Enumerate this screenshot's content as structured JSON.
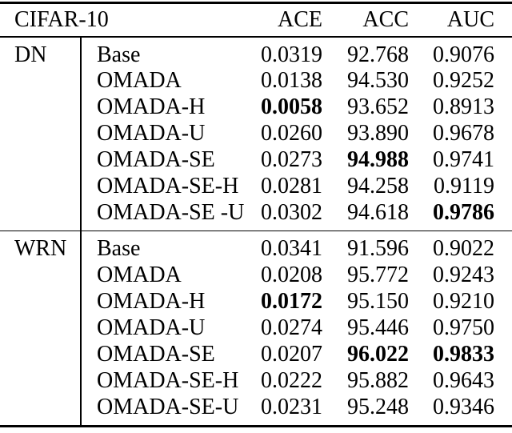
{
  "page": {
    "background": "#ffffff"
  },
  "colors": {
    "text": "#000000",
    "rule": "#000000"
  },
  "table": {
    "title_cell": "CIFAR-10",
    "columns": [
      "ACE",
      "ACC",
      "AUC"
    ],
    "sections": [
      {
        "group": "DN",
        "rows": [
          {
            "method": "Base",
            "ace": "0.0319",
            "acc": "92.768",
            "auc": "0.9076",
            "bold": []
          },
          {
            "method": "OMADA",
            "ace": "0.0138",
            "acc": "94.530",
            "auc": "0.9252",
            "bold": []
          },
          {
            "method": "OMADA-H",
            "ace": "0.0058",
            "acc": "93.652",
            "auc": "0.8913",
            "bold": [
              "ace"
            ]
          },
          {
            "method": "OMADA-U",
            "ace": "0.0260",
            "acc": "93.890",
            "auc": "0.9678",
            "bold": []
          },
          {
            "method": "OMADA-SE",
            "ace": "0.0273",
            "acc": "94.988",
            "auc": "0.9741",
            "bold": [
              "acc"
            ]
          },
          {
            "method": "OMADA-SE-H",
            "ace": "0.0281",
            "acc": "94.258",
            "auc": "0.9119",
            "bold": []
          },
          {
            "method": "OMADA-SE -U",
            "ace": "0.0302",
            "acc": "94.618",
            "auc": "0.9786",
            "bold": [
              "auc"
            ]
          }
        ]
      },
      {
        "group": "WRN",
        "rows": [
          {
            "method": "Base",
            "ace": "0.0341",
            "acc": "91.596",
            "auc": "0.9022",
            "bold": []
          },
          {
            "method": "OMADA",
            "ace": "0.0208",
            "acc": "95.772",
            "auc": "0.9243",
            "bold": []
          },
          {
            "method": "OMADA-H",
            "ace": "0.0172",
            "acc": "95.150",
            "auc": "0.9210",
            "bold": [
              "ace"
            ]
          },
          {
            "method": "OMADA-U",
            "ace": "0.0274",
            "acc": "95.446",
            "auc": "0.9750",
            "bold": []
          },
          {
            "method": "OMADA-SE",
            "ace": "0.0207",
            "acc": "96.022",
            "auc": "0.9833",
            "bold": [
              "acc",
              "auc"
            ]
          },
          {
            "method": "OMADA-SE-H",
            "ace": "0.0222",
            "acc": "95.882",
            "auc": "0.9643",
            "bold": []
          },
          {
            "method": "OMADA-SE-U",
            "ace": "0.0231",
            "acc": "95.248",
            "auc": "0.9346",
            "bold": []
          }
        ]
      }
    ]
  }
}
